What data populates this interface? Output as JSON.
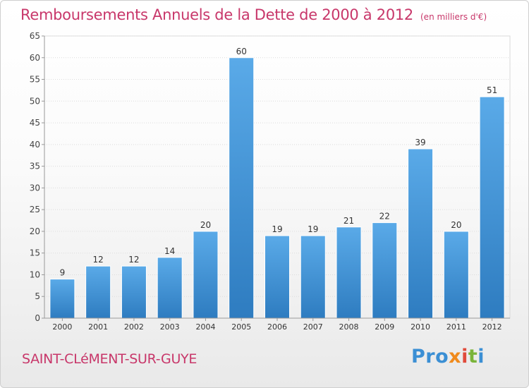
{
  "header": {
    "title": "Remboursements Annuels de la Dette de 2000 à 2012",
    "subtitle": "(en milliers d'€)"
  },
  "footer": {
    "town": "SAINT-CLéMENT-SUR-GUYE",
    "logo": "Proxiti",
    "logo_colors": [
      "#3b8fd4",
      "#f08a1c",
      "#e04b3b",
      "#7ab43a",
      "#3b8fd4"
    ]
  },
  "chart_data": {
    "type": "bar",
    "title": "Remboursements Annuels de la Dette de 2000 à 2012",
    "subtitle": "(en milliers d'€)",
    "categories": [
      "2000",
      "2001",
      "2002",
      "2003",
      "2004",
      "2005",
      "2006",
      "2007",
      "2008",
      "2009",
      "2010",
      "2011",
      "2012"
    ],
    "values": [
      9,
      12,
      12,
      14,
      20,
      60,
      19,
      19,
      21,
      22,
      39,
      20,
      51
    ],
    "ylim": [
      0,
      65
    ],
    "yticks": [
      0,
      5,
      10,
      15,
      20,
      25,
      30,
      35,
      40,
      45,
      50,
      55,
      60,
      65
    ],
    "grid": true,
    "data_labels": true,
    "bar_color": "#4a9de0",
    "bar_color_dark": "#2e7cc0"
  }
}
